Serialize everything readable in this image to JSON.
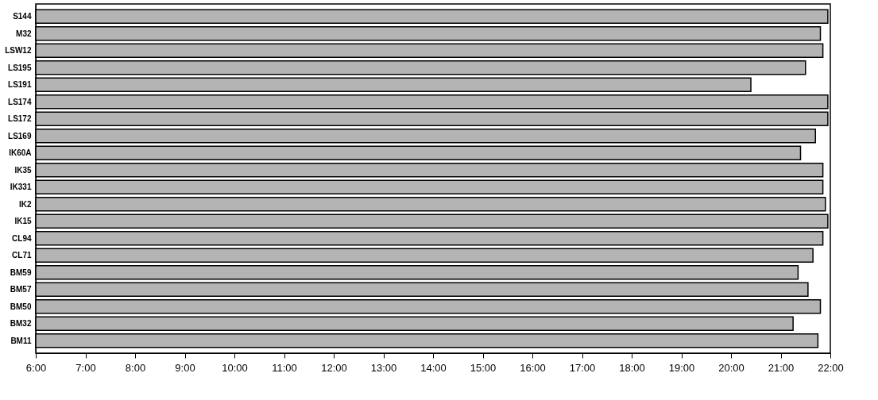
{
  "chart_data": {
    "type": "bar",
    "orientation": "horizontal",
    "color": "#b4b4b4",
    "categories": [
      "S144",
      "M32",
      "LSW12",
      "LS195",
      "LS191",
      "LS174",
      "LS172",
      "LS169",
      "IK60A",
      "IK35",
      "IK331",
      "IK2",
      "IK15",
      "CL94",
      "CL71",
      "BM59",
      "BM57",
      "BM50",
      "BM32",
      "BM11"
    ],
    "base": [
      6,
      6,
      6,
      6,
      6,
      6,
      6,
      6,
      6,
      6,
      6,
      6,
      6,
      6,
      6,
      6,
      6,
      6,
      6,
      6
    ],
    "values": [
      15.95,
      15.8,
      15.85,
      15.5,
      14.4,
      15.95,
      15.95,
      15.7,
      15.4,
      15.85,
      15.85,
      15.9,
      15.95,
      15.85,
      15.65,
      15.35,
      15.55,
      15.8,
      15.25,
      15.75
    ],
    "xlim": [
      6,
      22
    ],
    "xticks": [
      {
        "value": 6,
        "label": "6:00"
      },
      {
        "value": 7,
        "label": "7:00"
      },
      {
        "value": 8,
        "label": "8:00"
      },
      {
        "value": 9,
        "label": "9:00"
      },
      {
        "value": 10,
        "label": "10:00"
      },
      {
        "value": 11,
        "label": "11:00"
      },
      {
        "value": 12,
        "label": "12:00"
      },
      {
        "value": 13,
        "label": "13:00"
      },
      {
        "value": 14,
        "label": "14:00"
      },
      {
        "value": 15,
        "label": "15:00"
      },
      {
        "value": 16,
        "label": "16:00"
      },
      {
        "value": 17,
        "label": "17:00"
      },
      {
        "value": 18,
        "label": "18:00"
      },
      {
        "value": 19,
        "label": "19:00"
      },
      {
        "value": 20,
        "label": "20:00"
      },
      {
        "value": 21,
        "label": "21:00"
      },
      {
        "value": 22,
        "label": "22:00"
      }
    ],
    "grid": false
  }
}
